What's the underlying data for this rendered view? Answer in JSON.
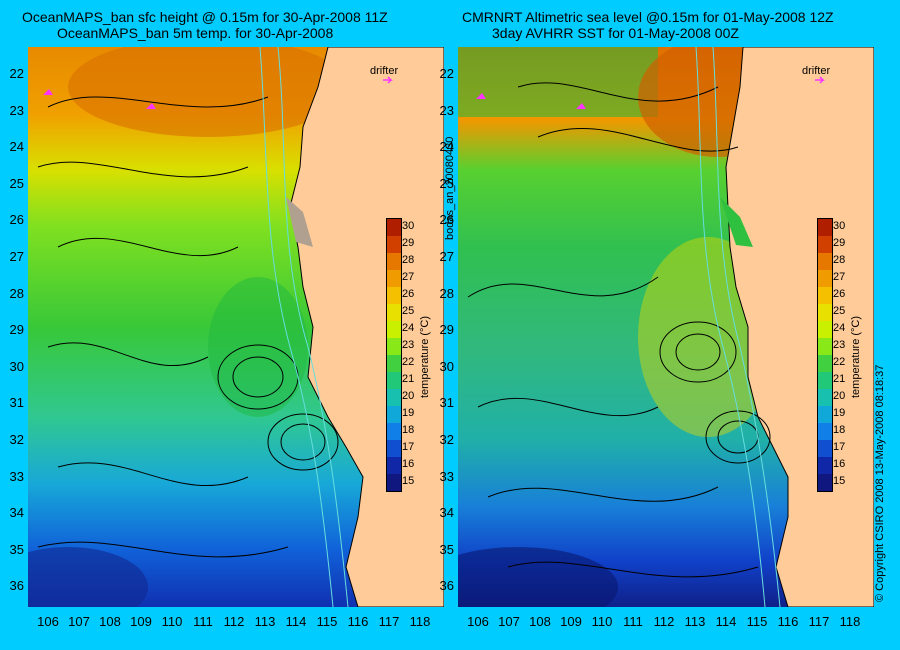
{
  "titles": {
    "left_line1": "OceanMAPS_ban sfc height @ 0.15m for 30-Apr-2008 11Z",
    "left_line2": "OceanMAPS_ban 5m temp. for 30-Apr-2008",
    "right_line1": "CMRNRT Altimetric sea level  @0.15m  for 01-May-2008 12Z",
    "right_line2": "3day AVHRR SST for 01-May-2008 00Z"
  },
  "x_ticks": [
    "106",
    "107",
    "108",
    "109",
    "110",
    "111",
    "112",
    "113",
    "114",
    "115",
    "116",
    "117",
    "118"
  ],
  "y_ticks": [
    "22",
    "23",
    "24",
    "25",
    "26",
    "27",
    "28",
    "29",
    "30",
    "31",
    "32",
    "33",
    "34",
    "35",
    "36"
  ],
  "colorbar": {
    "title": "temperature (°C)",
    "values": [
      "30",
      "29",
      "28",
      "27",
      "26",
      "25",
      "24",
      "23",
      "22",
      "21",
      "20",
      "19",
      "18",
      "17",
      "16",
      "15"
    ],
    "colors": [
      "#b01e00",
      "#d24000",
      "#e67800",
      "#f09c00",
      "#f5c000",
      "#e8e000",
      "#c8f000",
      "#88e818",
      "#40d040",
      "#20c878",
      "#18c0b0",
      "#10a8d8",
      "#1080e8",
      "#1050d0",
      "#1028a8",
      "#101880"
    ]
  },
  "side_label": "bodas_an_20080430",
  "copyright": "© Copyright CSIRO 2008   13-May-2008 08:18:37",
  "legend": {
    "drifter": "drifter"
  },
  "colors": {
    "background": "#00ccff",
    "land": "#ffcc99",
    "contour": "#000000",
    "bathymetry": "#66dddd",
    "drifter_marker": "#ff33ff"
  }
}
